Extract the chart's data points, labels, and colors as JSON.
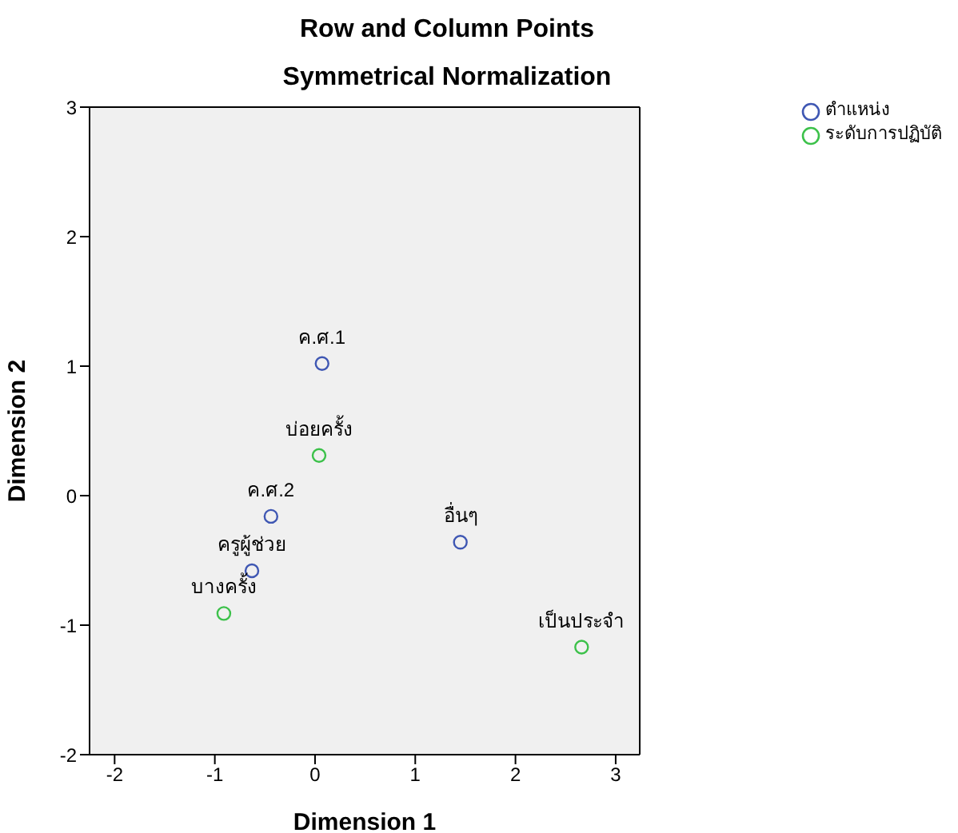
{
  "chart_data": {
    "type": "scatter",
    "title": "Row and Column Points",
    "subtitle": "Symmetrical Normalization",
    "xlabel": "Dimension 1",
    "ylabel": "Dimension 2",
    "xlim": [
      -2.25,
      3.24
    ],
    "xticks": [
      -2,
      -1,
      0,
      1,
      2,
      3
    ],
    "ylim": [
      -2,
      3
    ],
    "yticks": [
      -2,
      -1,
      0,
      1,
      2,
      3
    ],
    "grid": false,
    "legend": "top right",
    "marker": "circle",
    "series": [
      {
        "name": "ตำแหน่ง",
        "color": "#3f57b3",
        "x": [
          0.07,
          -0.44,
          -0.63,
          1.45
        ],
        "values": [
          1.02,
          -0.16,
          -0.58,
          -0.36
        ],
        "value_labels": [
          "ค.ศ.1",
          "ค.ศ.2",
          "ครูผู้ช่วย",
          "อื่นๆ"
        ]
      },
      {
        "name": "ระดับการปฏิบัติ",
        "color": "#3cc14a",
        "x": [
          0.04,
          -0.91,
          2.66
        ],
        "values": [
          0.31,
          -0.91,
          -1.17
        ],
        "value_labels": [
          "บ่อยครั้ง",
          "บางครั้ง",
          "เป็นประจำ"
        ]
      }
    ]
  }
}
